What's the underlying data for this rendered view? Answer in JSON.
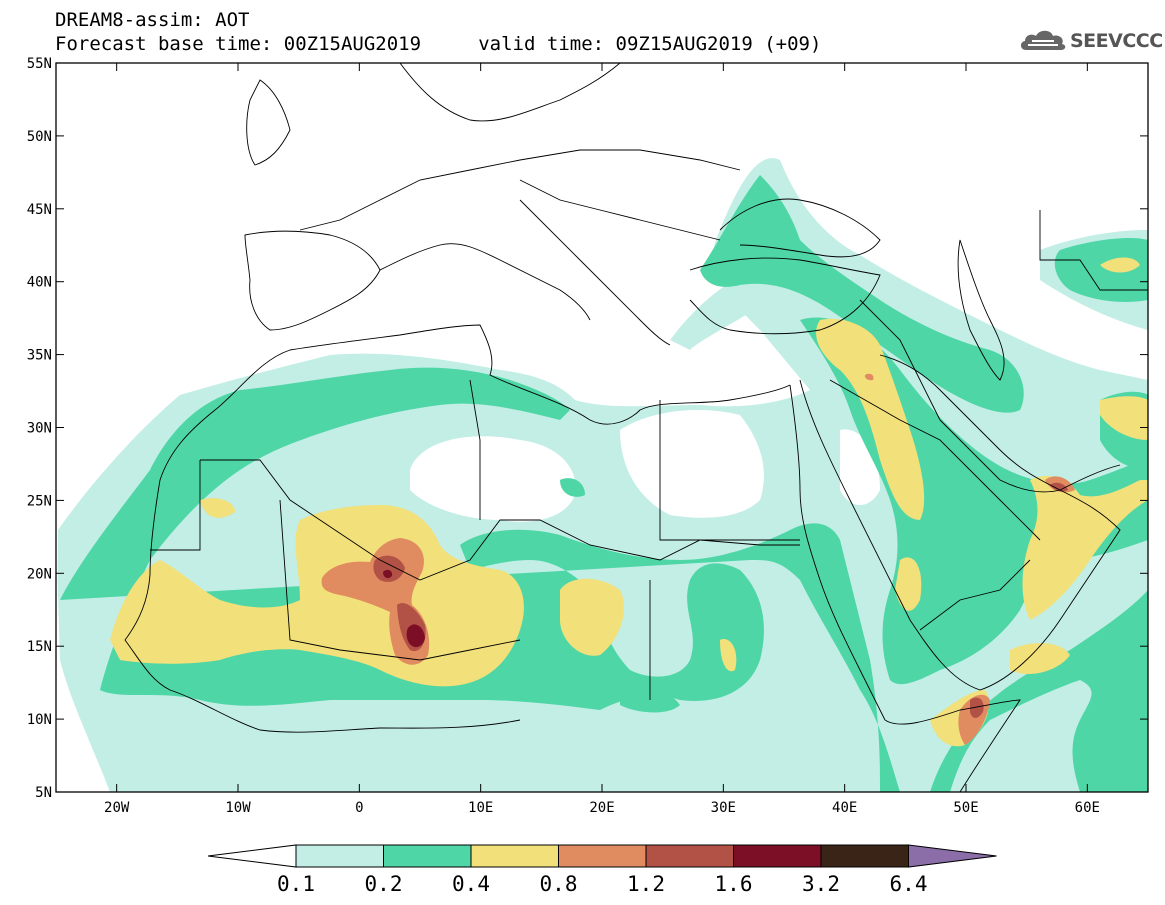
{
  "header": {
    "line1": "DREAM8-assim: AOT",
    "line2": "Forecast base time: 00Z15AUG2019     valid time: 09Z15AUG2019 (+09)"
  },
  "logo": {
    "text": "SEEVCCC",
    "icon": "cloud-icon"
  },
  "map": {
    "lon_range": [
      -25,
      65
    ],
    "lat_range": [
      5,
      55
    ],
    "x_ticks": [
      {
        "lon": -20,
        "label": "20W"
      },
      {
        "lon": -10,
        "label": "10W"
      },
      {
        "lon": 0,
        "label": "0"
      },
      {
        "lon": 10,
        "label": "10E"
      },
      {
        "lon": 20,
        "label": "20E"
      },
      {
        "lon": 30,
        "label": "30E"
      },
      {
        "lon": 40,
        "label": "40E"
      },
      {
        "lon": 50,
        "label": "50E"
      },
      {
        "lon": 60,
        "label": "60E"
      }
    ],
    "y_ticks": [
      {
        "lat": 55,
        "label": "55N"
      },
      {
        "lat": 50,
        "label": "50N"
      },
      {
        "lat": 45,
        "label": "45N"
      },
      {
        "lat": 40,
        "label": "40N"
      },
      {
        "lat": 35,
        "label": "35N"
      },
      {
        "lat": 30,
        "label": "30N"
      },
      {
        "lat": 25,
        "label": "25N"
      },
      {
        "lat": 20,
        "label": "20N"
      },
      {
        "lat": 15,
        "label": "15N"
      },
      {
        "lat": 10,
        "label": "10N"
      },
      {
        "lat": 5,
        "label": "5N"
      }
    ],
    "aot_colors": {
      "0.1-0.2": "#c2eee6",
      "0.2-0.4": "#4fd6a6",
      "0.4-0.8": "#f2e07a",
      "0.8-1.2": "#e08c60",
      "1.2-1.6": "#b25246",
      "1.6-3.2": "#7c0e26",
      "3.2-6.4": "#3a2418",
      "6.4+": "#8b6ea8"
    }
  },
  "colorbar": {
    "labels": [
      "0.1",
      "0.2",
      "0.4",
      "0.8",
      "1.2",
      "1.6",
      "3.2",
      "6.4"
    ],
    "colors": [
      "#c2eee6",
      "#4fd6a6",
      "#f2e07a",
      "#e08c60",
      "#b25246",
      "#7c0e26",
      "#3a2418"
    ],
    "low_color": "#ffffff",
    "high_color": "#8b6ea8"
  }
}
